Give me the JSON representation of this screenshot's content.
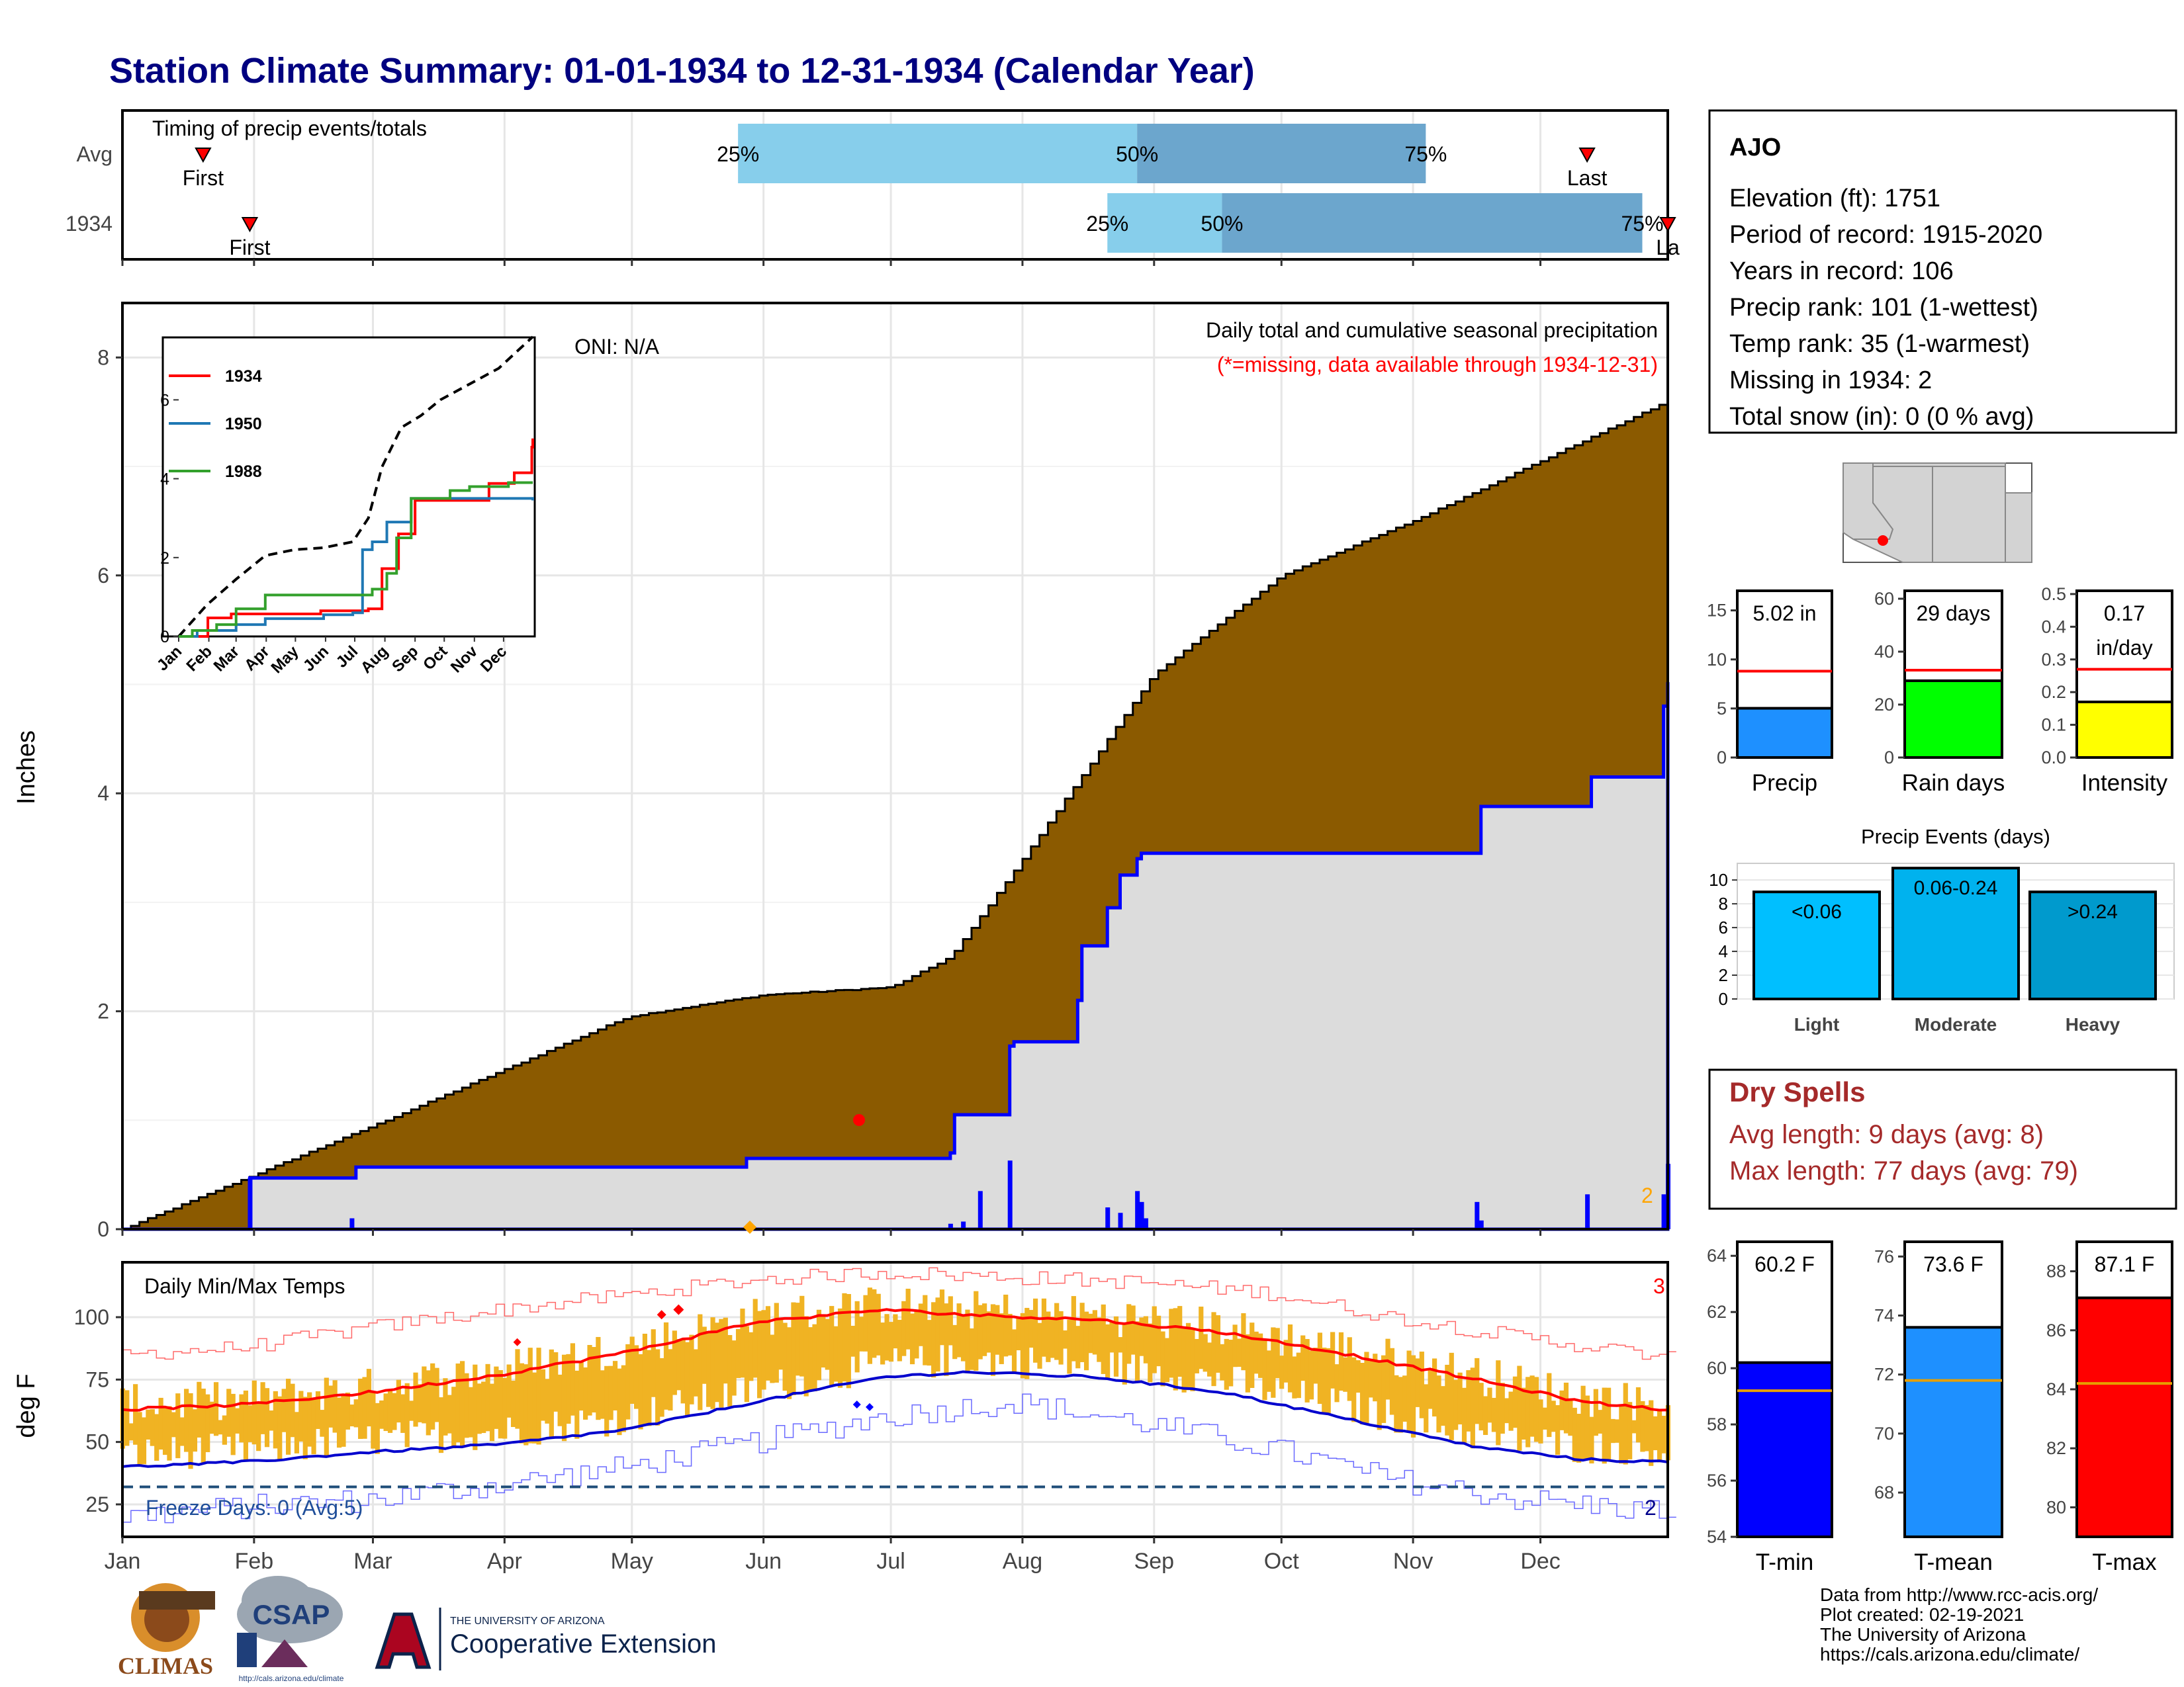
{
  "title": "Station Climate Summary: 01-01-1934 to 12-31-1934 (Calendar Year)",
  "colors": {
    "title": "#000080",
    "cum_fill": "#8B5A00",
    "avg_fill": "#DCDCDC",
    "quartile_light": "#87CEEB",
    "quartile_dark": "#6CA6CD",
    "daily_bar": "#0000FF",
    "temp_bar": "#F0B323",
    "max_line": "#FF0000",
    "min_line": "#0000CD",
    "dry_spells": "#A52A2A"
  },
  "timing_panel": {
    "title": "Timing of precip events/totals",
    "rows": [
      {
        "label": "Avg",
        "first_label": "First",
        "last_label": "Last",
        "first_day": 20,
        "last_day": 346,
        "q25": 146,
        "q50": 240,
        "q75": 308,
        "q25_label": "25%",
        "q50_label": "50%",
        "q75_label": "75%"
      },
      {
        "label": "1934",
        "first_label": "First",
        "last_label": "La",
        "first_day": 31,
        "last_day": 365,
        "q25": 233,
        "q50": 260,
        "q75": 359,
        "q25_label": "25%",
        "q50_label": "50%",
        "q75_label": "75%"
      }
    ]
  },
  "precip_panel": {
    "ylabel": "Inches",
    "oni": "ONI: N/A",
    "caption1": "Daily total and cumulative seasonal precipitation",
    "caption2": "(*=missing, data available through 1934-12-31)",
    "missing_count": "2",
    "y_ticks": [
      "0",
      "2",
      "4",
      "6",
      "8"
    ],
    "ylim": [
      0,
      8.5
    ]
  },
  "chart_data": [
    {
      "type": "area",
      "name": "cumulative precipitation",
      "series": [
        {
          "name": "Average cumulative",
          "x": [
            1,
            60,
            120,
            152,
            182,
            196,
            213,
            244,
            274,
            305,
            335,
            365
          ],
          "y": [
            0,
            0.95,
            1.95,
            2.15,
            2.22,
            2.5,
            3.4,
            5.1,
            6.0,
            6.5,
            7.05,
            7.6
          ]
        },
        {
          "name": "1934 cumulative",
          "x": [
            1,
            30,
            31,
            55,
            56,
            147,
            148,
            196,
            197,
            203,
            210,
            211,
            226,
            227,
            233,
            236,
            240,
            241,
            244,
            320,
            321,
            346,
            347,
            362,
            364,
            365
          ],
          "y": [
            0,
            0,
            0.47,
            0.47,
            0.57,
            0.57,
            0.65,
            0.7,
            1.05,
            1.05,
            1.68,
            1.72,
            2.1,
            2.6,
            2.95,
            3.25,
            3.4,
            3.45,
            3.45,
            3.45,
            3.88,
            3.88,
            4.15,
            4.15,
            4.8,
            5.02
          ]
        }
      ],
      "daily_bars": {
        "x": [
          31,
          55,
          196,
          199,
          203,
          210,
          233,
          236,
          240,
          241,
          242,
          320,
          321,
          346,
          364,
          365
        ],
        "y": [
          0.47,
          0.1,
          0.05,
          0.07,
          0.35,
          0.63,
          0.2,
          0.15,
          0.35,
          0.25,
          0.1,
          0.25,
          0.08,
          0.32,
          0.32,
          0.6
        ]
      }
    },
    {
      "type": "line",
      "name": "inset cumulative comparison",
      "categories": [
        "Jan",
        "Feb",
        "Mar",
        "Apr",
        "May",
        "Jun",
        "Jul",
        "Aug",
        "Sep",
        "Oct",
        "Nov",
        "Dec"
      ],
      "y_ticks": [
        "0",
        "2",
        "4",
        "6"
      ],
      "ylim": [
        0,
        7.5
      ],
      "series": [
        {
          "name": "1934",
          "color": "#FF0000",
          "x": [
            1,
            31,
            55,
            147,
            196,
            210,
            227,
            244,
            320,
            346,
            364,
            365
          ],
          "y": [
            0,
            0.47,
            0.57,
            0.65,
            0.7,
            1.72,
            2.6,
            3.45,
            3.88,
            4.15,
            4.8,
            5.02
          ]
        },
        {
          "name": "1950",
          "color": "#1F78B4",
          "x": [
            1,
            20,
            60,
            90,
            150,
            180,
            190,
            200,
            215,
            240,
            300,
            365
          ],
          "y": [
            0,
            0.15,
            0.3,
            0.45,
            0.55,
            0.6,
            2.2,
            2.4,
            2.9,
            3.5,
            3.5,
            3.45
          ]
        },
        {
          "name": "1988",
          "color": "#33A02C",
          "x": [
            1,
            15,
            40,
            60,
            90,
            180,
            200,
            215,
            225,
            240,
            280,
            300,
            340,
            365
          ],
          "y": [
            0,
            0.15,
            0.3,
            0.7,
            1.05,
            1.05,
            1.2,
            1.6,
            2.5,
            3.5,
            3.7,
            3.8,
            3.9,
            3.9
          ]
        }
      ],
      "climatology": {
        "x": [
          1,
          30,
          60,
          90,
          120,
          150,
          180,
          196,
          210,
          230,
          250,
          270,
          300,
          330,
          365
        ],
        "y": [
          0,
          0.8,
          1.45,
          2.05,
          2.2,
          2.25,
          2.4,
          3.0,
          4.3,
          5.3,
          5.6,
          6.0,
          6.4,
          6.8,
          7.6
        ]
      }
    },
    {
      "type": "bar",
      "name": "daily min/max temps",
      "title": "Daily Min/Max Temps",
      "ylabel": "deg F",
      "y_ticks": [
        "25",
        "50",
        "75",
        "100"
      ],
      "ylim": [
        12,
        122
      ],
      "freeze_line": 32,
      "freeze_label": "Freeze Days: 0 (Avg:5)",
      "missing_max": "3",
      "missing_min": "2",
      "normal_max": {
        "x": [
          1,
          30,
          60,
          90,
          120,
          150,
          180,
          200,
          230,
          260,
          290,
          320,
          345,
          365
        ],
        "y": [
          63,
          65,
          70,
          77,
          86,
          98,
          103,
          101,
          99,
          94,
          85,
          75,
          66,
          63
        ]
      },
      "normal_min": {
        "x": [
          1,
          30,
          60,
          90,
          120,
          150,
          180,
          200,
          230,
          260,
          290,
          320,
          345,
          365
        ],
        "y": [
          40,
          42,
          46,
          49,
          55,
          66,
          76,
          78,
          76,
          70,
          59,
          48,
          43,
          42
        ]
      },
      "record_high": {
        "x": [
          1,
          30,
          60,
          90,
          120,
          150,
          180,
          210,
          240,
          270,
          300,
          330,
          365
        ],
        "y": [
          85,
          88,
          96,
          103,
          109,
          115,
          118,
          116,
          114,
          110,
          100,
          92,
          84
        ]
      },
      "record_low": {
        "x": [
          1,
          30,
          60,
          90,
          120,
          150,
          180,
          210,
          240,
          270,
          300,
          330,
          365
        ],
        "y": [
          20,
          24,
          27,
          33,
          40,
          50,
          60,
          66,
          58,
          48,
          35,
          27,
          22
        ]
      }
    },
    {
      "type": "bar",
      "name": "precip totals",
      "categories": [
        "Precip",
        "Rain days",
        "Intensity"
      ],
      "values": [
        5.02,
        29,
        0.17
      ],
      "value_labels": [
        "5.02 in",
        "29 days",
        "0.17\nin/day"
      ],
      "averages": [
        8.8,
        33,
        0.27
      ],
      "ylims": [
        [
          0,
          17
        ],
        [
          0,
          63
        ],
        [
          0,
          0.51
        ]
      ],
      "y_ticks": [
        [
          "0",
          "5",
          "10",
          "15"
        ],
        [
          "0",
          "20",
          "40",
          "60"
        ],
        [
          "0.0",
          "0.1",
          "0.2",
          "0.3",
          "0.4",
          "0.5"
        ]
      ],
      "tick_values": [
        [
          0,
          5,
          10,
          15
        ],
        [
          0,
          20,
          40,
          60
        ],
        [
          0,
          0.1,
          0.2,
          0.3,
          0.4,
          0.5
        ]
      ],
      "colors": [
        "#1E90FF",
        "#00FF00",
        "#FFFF00"
      ]
    },
    {
      "type": "bar",
      "name": "precip events",
      "title": "Precip Events (days)",
      "categories": [
        "Light",
        "Moderate",
        "Heavy"
      ],
      "values": [
        9,
        11,
        9
      ],
      "value_labels": [
        "<0.06",
        "0.06-0.24",
        ">0.24"
      ],
      "y_ticks": [
        "0",
        "2",
        "4",
        "6",
        "8",
        "10"
      ],
      "ylim": [
        0,
        11.4
      ],
      "colors": [
        "#00BFFF",
        "#00B2EE",
        "#009ACD"
      ]
    },
    {
      "type": "bar",
      "name": "temperature means",
      "categories": [
        "T-min",
        "T-mean",
        "T-max"
      ],
      "values": [
        60.2,
        73.6,
        87.1
      ],
      "value_labels": [
        "60.2 F",
        "73.6 F",
        "87.1 F"
      ],
      "averages": [
        59.2,
        71.8,
        84.2
      ],
      "ylims": [
        [
          54,
          64.5
        ],
        [
          66.5,
          76.5
        ],
        [
          79,
          89
        ]
      ],
      "y_ticks": [
        [
          "54",
          "56",
          "58",
          "60",
          "62",
          "64"
        ],
        [
          "68",
          "70",
          "72",
          "74",
          "76"
        ],
        [
          "80",
          "82",
          "84",
          "86",
          "88"
        ]
      ],
      "tick_values": [
        [
          54,
          56,
          58,
          60,
          62,
          64
        ],
        [
          68,
          70,
          72,
          74,
          76
        ],
        [
          80,
          82,
          84,
          86,
          88
        ]
      ],
      "colors": [
        "#0000FF",
        "#1E90FF",
        "#FF0000"
      ]
    }
  ],
  "months": [
    "Jan",
    "Feb",
    "Mar",
    "Apr",
    "May",
    "Jun",
    "Jul",
    "Aug",
    "Sep",
    "Oct",
    "Nov",
    "Dec"
  ],
  "station": {
    "name": "AJO",
    "lines": [
      "Elevation (ft): 1751",
      "Period of record: 1915-2020",
      "Years in record: 106",
      "Precip rank: 101 (1-wettest)",
      "Temp rank: 35 (1-warmest)",
      "Missing in 1934: 2",
      "Total snow (in): 0 (0 % avg)"
    ]
  },
  "dry_spells": {
    "title": "Dry Spells",
    "avg": "Avg length: 9 days (avg: 8)",
    "max": "Max length: 77 days (avg: 79)"
  },
  "footer": {
    "lines": [
      "Data from http://www.rcc-acis.org/",
      "Plot created: 02-19-2021",
      "The University of Arizona",
      "https://cals.arizona.edu/climate/"
    ],
    "climas": "CLIMAS",
    "csap": "CSAP",
    "csap_url": "http://cals.arizona.edu/climate",
    "ua_small": "THE UNIVERSITY OF ARIZONA",
    "ua_big": "Cooperative Extension"
  }
}
